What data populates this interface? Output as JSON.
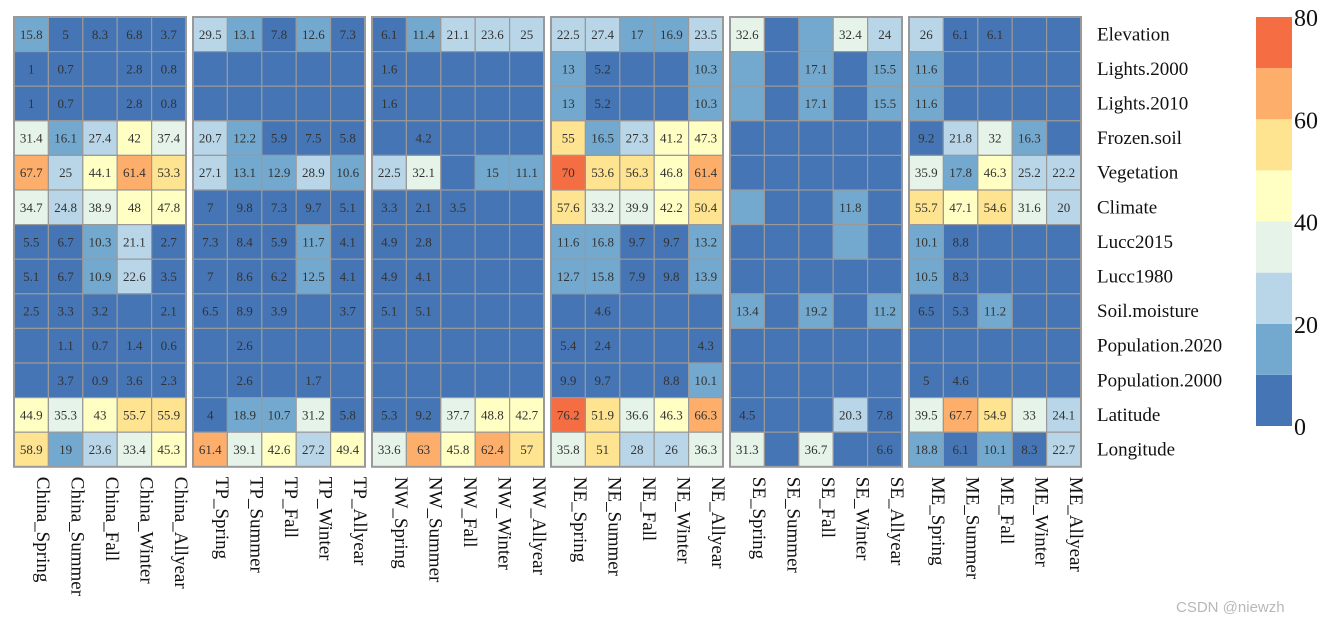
{
  "chart_data": {
    "type": "heatmap",
    "rows": [
      "Elevation",
      "Lights.2000",
      "Lights.2010",
      "Frozen.soil",
      "Vegetation",
      "Climate",
      "Lucc2015",
      "Lucc1980",
      "Soil.moisture",
      "Population.2020",
      "Population.2000",
      "Latitude",
      "Longitude"
    ],
    "panels": [
      {
        "name": "China",
        "columns": [
          "China_Spring",
          "China_Summer",
          "China_Fall",
          "China_Winter",
          "China_Allyear"
        ],
        "values": [
          [
            15.8,
            5,
            8.3,
            6.8,
            3.7
          ],
          [
            1,
            0.7,
            null,
            2.8,
            0.8
          ],
          [
            1,
            0.7,
            null,
            2.8,
            0.8
          ],
          [
            31.4,
            16.1,
            27.4,
            42,
            37.4
          ],
          [
            67.7,
            25,
            44.1,
            61.4,
            53.3
          ],
          [
            34.7,
            24.8,
            38.9,
            48,
            47.8
          ],
          [
            5.5,
            6.7,
            10.3,
            21.1,
            2.7
          ],
          [
            5.1,
            6.7,
            10.9,
            22.6,
            3.5
          ],
          [
            2.5,
            3.3,
            3.2,
            null,
            2.1
          ],
          [
            null,
            1.1,
            0.7,
            1.4,
            0.6
          ],
          [
            null,
            3.7,
            0.9,
            3.6,
            2.3
          ],
          [
            44.9,
            35.3,
            43,
            55.7,
            55.9
          ],
          [
            58.9,
            19,
            23.6,
            33.4,
            45.3
          ]
        ]
      },
      {
        "name": "TP",
        "columns": [
          "TP_Spring",
          "TP_Summer",
          "TP_Fall",
          "TP_Winter",
          "TP_Allyear"
        ],
        "values": [
          [
            29.5,
            13.1,
            7.8,
            12.6,
            7.3
          ],
          [
            null,
            null,
            null,
            null,
            null
          ],
          [
            null,
            null,
            null,
            null,
            null
          ],
          [
            20.7,
            12.2,
            5.9,
            7.5,
            5.8
          ],
          [
            27.1,
            13.1,
            12.9,
            28.9,
            10.6
          ],
          [
            7,
            9.8,
            7.3,
            9.7,
            5.1
          ],
          [
            7.3,
            8.4,
            5.9,
            11.7,
            4.1
          ],
          [
            7,
            8.6,
            6.2,
            12.5,
            4.1
          ],
          [
            6.5,
            8.9,
            3.9,
            null,
            3.7
          ],
          [
            null,
            2.6,
            null,
            null,
            null
          ],
          [
            null,
            2.6,
            null,
            1.7,
            null
          ],
          [
            4,
            18.9,
            10.7,
            31.2,
            5.8
          ],
          [
            61.4,
            39.1,
            42.6,
            27.2,
            49.4
          ]
        ]
      },
      {
        "name": "NW",
        "columns": [
          "NW_Spring",
          "NW_Summer",
          "NW_Fall",
          "NW_Winter",
          "NW_Allyear"
        ],
        "values": [
          [
            6.1,
            11.4,
            21.1,
            23.6,
            25
          ],
          [
            1.6,
            null,
            null,
            null,
            null
          ],
          [
            1.6,
            null,
            null,
            null,
            null
          ],
          [
            null,
            4.2,
            null,
            null,
            null
          ],
          [
            22.5,
            32.1,
            null,
            15,
            11.1
          ],
          [
            3.3,
            2.1,
            3.5,
            null,
            null
          ],
          [
            4.9,
            2.8,
            null,
            null,
            null
          ],
          [
            4.9,
            4.1,
            null,
            null,
            null
          ],
          [
            5.1,
            5.1,
            null,
            null,
            null
          ],
          [
            null,
            null,
            null,
            null,
            null
          ],
          [
            null,
            null,
            null,
            null,
            null
          ],
          [
            5.3,
            9.2,
            37.7,
            48.8,
            42.7
          ],
          [
            33.6,
            63,
            45.8,
            62.4,
            57
          ]
        ]
      },
      {
        "name": "NE",
        "columns": [
          "NE_Spring",
          "NE_Summer",
          "NE_Fall",
          "NE_Winter",
          "NE_Allyear"
        ],
        "values": [
          [
            22.5,
            27.4,
            17,
            16.9,
            23.5
          ],
          [
            13,
            5.2,
            null,
            null,
            10.3
          ],
          [
            13,
            5.2,
            null,
            null,
            10.3
          ],
          [
            55,
            16.5,
            27.3,
            41.2,
            47.3
          ],
          [
            70,
            53.6,
            56.3,
            46.8,
            61.4
          ],
          [
            57.6,
            33.2,
            39.9,
            42.2,
            50.4
          ],
          [
            11.6,
            16.8,
            9.7,
            9.7,
            13.2
          ],
          [
            12.7,
            15.8,
            7.9,
            9.8,
            13.9
          ],
          [
            null,
            4.6,
            null,
            null,
            null
          ],
          [
            5.4,
            2.4,
            null,
            null,
            4.3
          ],
          [
            9.9,
            9.7,
            null,
            8.8,
            10.1
          ],
          [
            76.2,
            51.9,
            36.6,
            46.3,
            66.3
          ],
          [
            35.8,
            51,
            28,
            26,
            36.3
          ]
        ]
      },
      {
        "name": "SE",
        "columns": [
          "SE_Spring",
          "SE_Summer",
          "SE_Fall",
          "SE_Winter",
          "SE_Allyear"
        ],
        "values": [
          [
            32.6,
            null,
            16,
            32.4,
            24
          ],
          [
            15,
            null,
            17.1,
            null,
            15.5
          ],
          [
            15,
            null,
            17.1,
            null,
            15.5
          ],
          [
            null,
            null,
            null,
            null,
            null
          ],
          [
            null,
            null,
            null,
            null,
            null
          ],
          [
            15,
            null,
            null,
            11.8,
            null
          ],
          [
            null,
            null,
            null,
            15,
            null
          ],
          [
            null,
            null,
            null,
            null,
            null
          ],
          [
            13.4,
            null,
            19.2,
            null,
            11.2
          ],
          [
            null,
            null,
            null,
            null,
            null
          ],
          [
            null,
            null,
            null,
            null,
            null
          ],
          [
            4.5,
            null,
            null,
            20.3,
            7.8
          ],
          [
            31.3,
            null,
            36.7,
            null,
            6.6
          ]
        ],
        "hidden_labels": [
          [
            0,
            2
          ],
          [
            1,
            0
          ],
          [
            2,
            0
          ],
          [
            5,
            0
          ],
          [
            6,
            3
          ]
        ]
      },
      {
        "name": "ME",
        "columns": [
          "ME_Spring",
          "ME_Summer",
          "ME_Fall",
          "ME_Winter",
          "ME_Allyear"
        ],
        "values": [
          [
            26,
            6.1,
            6.1,
            null,
            null
          ],
          [
            11.6,
            null,
            null,
            null,
            null
          ],
          [
            11.6,
            null,
            null,
            null,
            null
          ],
          [
            9.2,
            21.8,
            32,
            16.3,
            null
          ],
          [
            35.9,
            17.8,
            46.3,
            25.2,
            22.2
          ],
          [
            55.7,
            47.1,
            54.6,
            31.6,
            20
          ],
          [
            10.1,
            8.8,
            null,
            null,
            null
          ],
          [
            10.5,
            8.3,
            null,
            null,
            null
          ],
          [
            6.5,
            5.3,
            11.2,
            null,
            null
          ],
          [
            null,
            null,
            null,
            null,
            null
          ],
          [
            5,
            4.6,
            null,
            null,
            null
          ],
          [
            39.5,
            67.7,
            54.9,
            33,
            24.1
          ],
          [
            18.8,
            6.1,
            10.1,
            8.3,
            22.7
          ]
        ]
      }
    ],
    "color_scale": {
      "breaks": [
        0,
        10,
        20,
        30,
        40,
        50,
        60,
        70,
        80
      ],
      "colors": [
        "#4575b4",
        "#74a9cf",
        "#b9d6e8",
        "#e6f3e8",
        "#ffffc4",
        "#fee391",
        "#fdae6b",
        "#f46d43"
      ]
    },
    "legend": {
      "tick_labels": [
        "80",
        "60",
        "40",
        "20",
        "0"
      ],
      "tick_values": [
        80,
        60,
        40,
        20,
        0
      ],
      "min": 0,
      "max": 80,
      "position": "right"
    }
  },
  "watermark": "CSDN @niewzh"
}
